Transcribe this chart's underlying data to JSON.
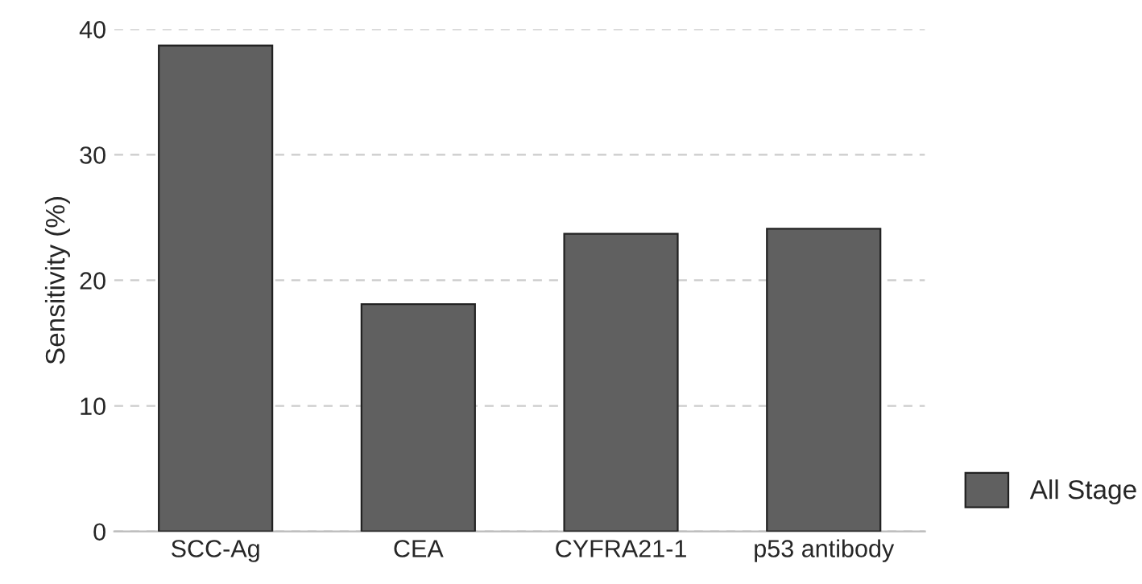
{
  "chart_data": {
    "type": "bar",
    "ylabel": "Sensitivity (%)",
    "categories": [
      "SCC-Ag",
      "CEA",
      "CYFRA21-1",
      "p53 antibody"
    ],
    "series": [
      {
        "name": "All Stage",
        "color": "#606060",
        "values": [
          38.7,
          18.1,
          23.7,
          24.1
        ]
      }
    ],
    "ylim": [
      0,
      40
    ],
    "yticks": [
      0,
      10,
      20,
      30,
      40
    ],
    "grid": "y",
    "legend": "bottom right"
  }
}
